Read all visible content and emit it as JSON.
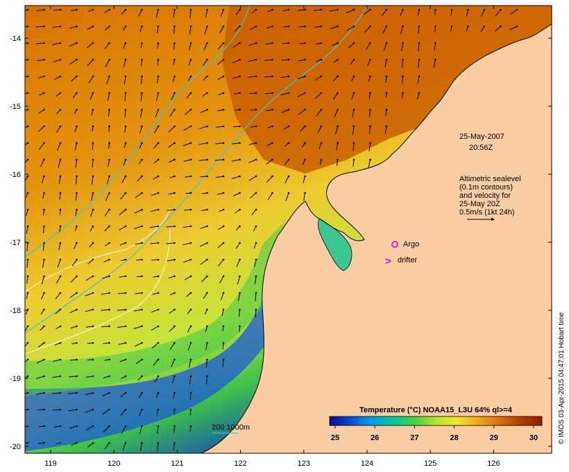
{
  "map": {
    "date_label": "25-May-2007",
    "time_label": "20:56Z",
    "altimetry_lines": [
      "Altimetric sealevel",
      "(0.1m contours)",
      "and velocity for",
      "25-May 20Z",
      "0.5m/s (1kt 24h)"
    ],
    "markers": {
      "argo_label": "Argo",
      "drifter_label": "drifter",
      "drifter_symbol": ">"
    },
    "bathy_legend": "200  1000m",
    "credit": "© IMOS 03-Apr-2015 04:47:01 Hobart time",
    "lon_ticks": [
      "119",
      "120",
      "121",
      "122",
      "123",
      "124",
      "125",
      "126"
    ],
    "lat_ticks": [
      "-14",
      "-15",
      "-16",
      "-17",
      "-18",
      "-19",
      "-20"
    ],
    "colorbar": {
      "title": "Temperature (°C) NOAA15_L3U 64% ql>=4",
      "ticks": [
        "25",
        "26",
        "27",
        "28",
        "29",
        "30"
      ],
      "colors": [
        "#0a0a8c",
        "#0050d0",
        "#00a0e6",
        "#00c8a0",
        "#40d040",
        "#b4e632",
        "#f0e628",
        "#f0aa14",
        "#dc6e0a",
        "#b43c00",
        "#8c1e00"
      ]
    },
    "colors": {
      "land": "#fbcda2",
      "ocean_warm": "#d67800",
      "ocean_cool": "#f0e040",
      "contour_cyan": "#3cc8c8",
      "contour_white": "#ffffff",
      "marker_magenta": "#e600e6"
    }
  }
}
